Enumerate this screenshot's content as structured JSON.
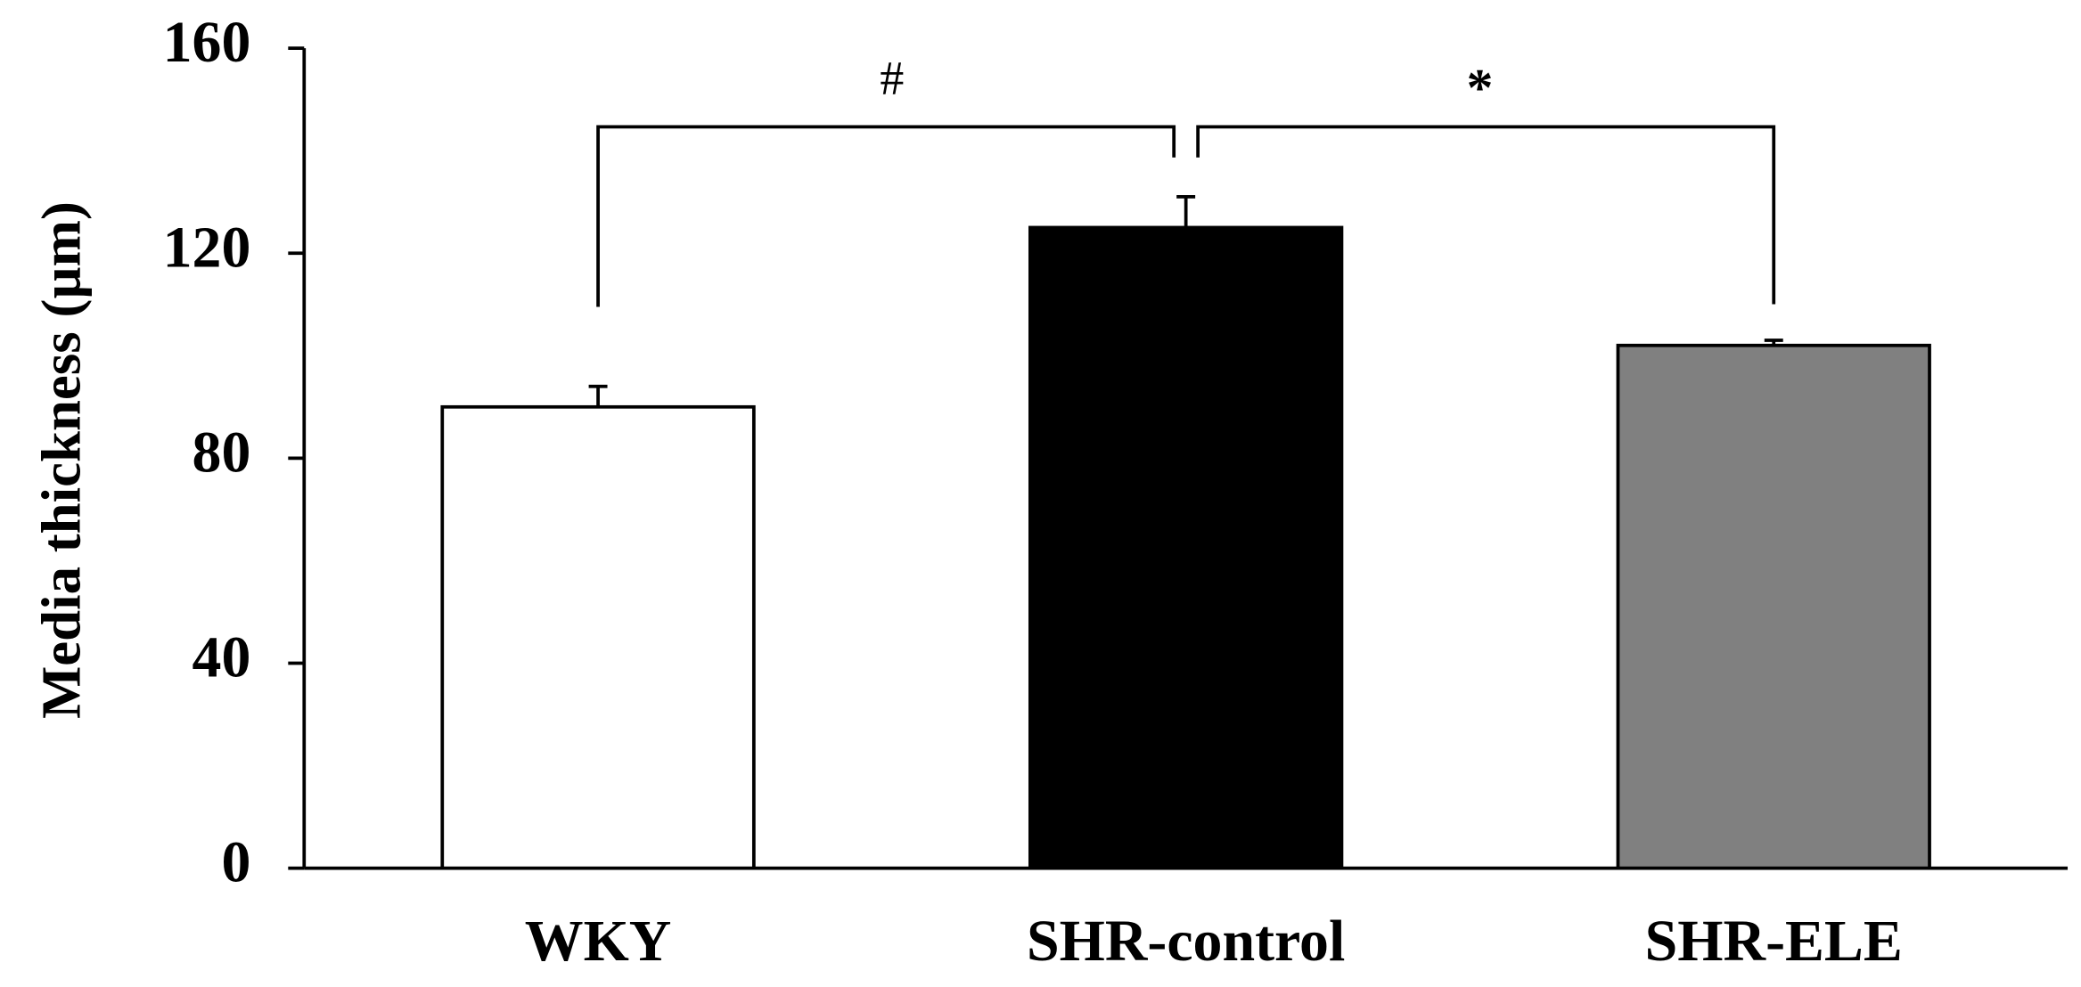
{
  "chart_data": {
    "type": "bar",
    "y_label": "Media thickness (µm)",
    "categories": [
      "WKY",
      "SHR-control",
      "SHR-ELE"
    ],
    "values": [
      90,
      125,
      102
    ],
    "errors": [
      4,
      6,
      1
    ],
    "colors": [
      "#ffffff",
      "#000000",
      "#808080"
    ],
    "ylim": [
      0,
      160
    ],
    "yticks": [
      0,
      40,
      80,
      120,
      160
    ],
    "annotations": [
      "#",
      "*"
    ]
  }
}
